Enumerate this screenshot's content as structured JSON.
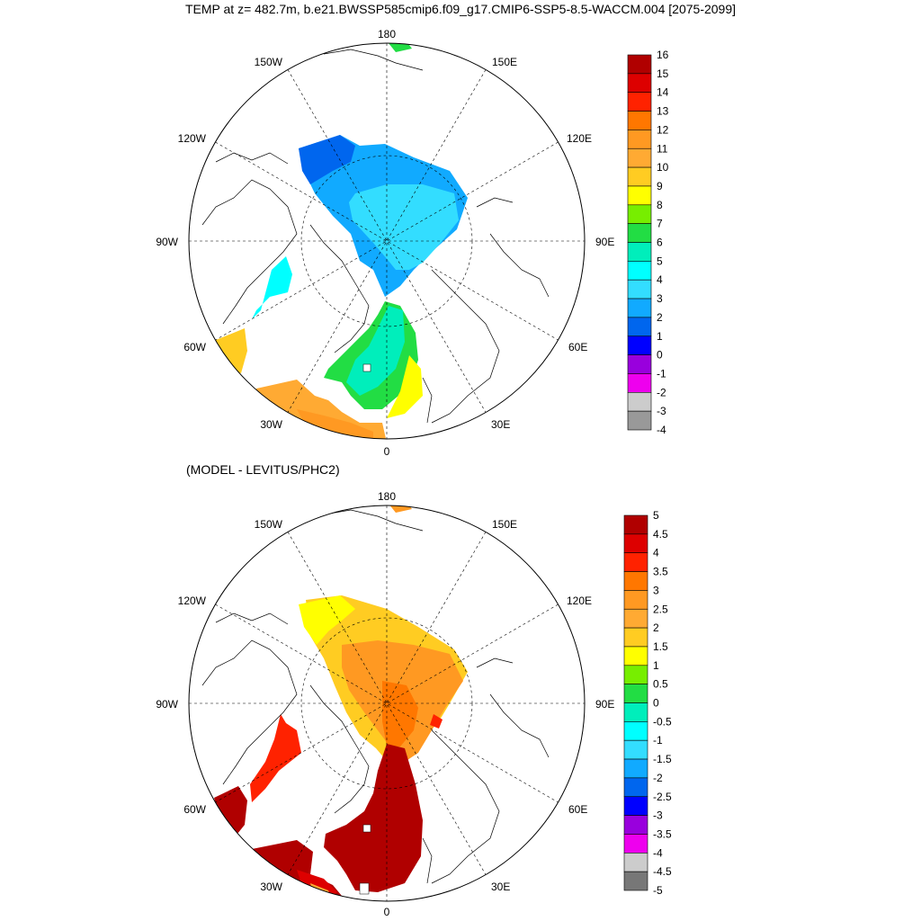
{
  "title": "TEMP at z= 482.7m, b.e21.BWSSP585cmip6.f09_g17.CMIP6-SSP5-8.5-WACCM.004 [2075-2099]",
  "subtitle": "(MODEL - LEVITUS/PHC2)",
  "longitude_labels": [
    "180",
    "150E",
    "120E",
    "90E",
    "60E",
    "30E",
    "0",
    "30W",
    "60W",
    "90W",
    "120W",
    "150W"
  ],
  "panels": [
    {
      "name": "model",
      "colorbar": {
        "labels": [
          "16",
          "15",
          "14",
          "13",
          "12",
          "11",
          "10",
          "9",
          "8",
          "7",
          "6",
          "5",
          "4",
          "3",
          "2",
          "1",
          "0",
          "-1",
          "-2",
          "-3",
          "-4"
        ],
        "colors": [
          "#b00000",
          "#dd0000",
          "#ff2200",
          "#ff7700",
          "#ff9922",
          "#ffaa33",
          "#ffcc22",
          "#ffff00",
          "#77ee00",
          "#22dd44",
          "#00eebb",
          "#00ffff",
          "#33ddff",
          "#11aaff",
          "#0066ee",
          "#0000ff",
          "#9900dd",
          "#ee00ee",
          "#cccccc",
          "#999999"
        ]
      }
    },
    {
      "name": "difference",
      "colorbar": {
        "labels": [
          "5",
          "4.5",
          "4",
          "3.5",
          "3",
          "2.5",
          "2",
          "1.5",
          "1",
          "0.5",
          "0",
          "-0.5",
          "-1",
          "-1.5",
          "-2",
          "-2.5",
          "-3",
          "-3.5",
          "-4",
          "-4.5",
          "-5"
        ],
        "colors": [
          "#b00000",
          "#dd0000",
          "#ff2200",
          "#ff7700",
          "#ff9922",
          "#ffaa33",
          "#ffcc22",
          "#ffff00",
          "#77ee00",
          "#22dd44",
          "#00eebb",
          "#00ffff",
          "#33ddff",
          "#11aaff",
          "#0066ee",
          "#0000ff",
          "#9900dd",
          "#ee00ee",
          "#cccccc",
          "#777777"
        ]
      }
    }
  ]
}
